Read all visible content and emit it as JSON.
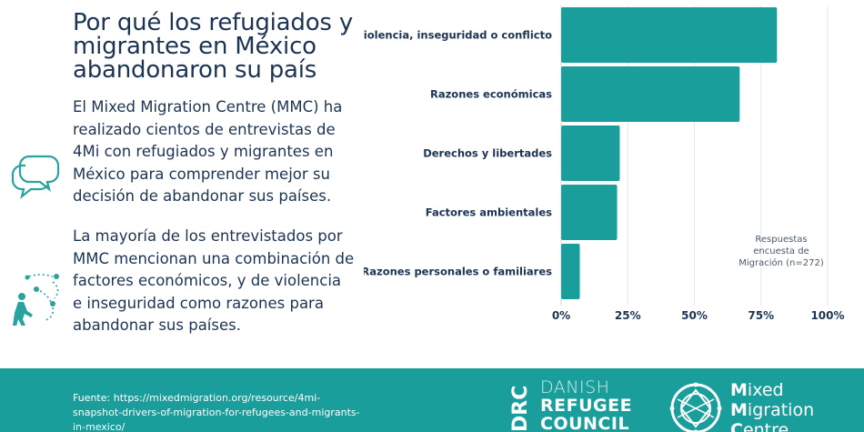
{
  "header": {
    "title": "Por qué los refugiados y migrantes en México abandonaron su país"
  },
  "intro": {
    "paragraph1": "El Mixed Migration Centre (MMC) ha realizado cientos de entrevistas de 4Mi con refugiados y migrantes en México para comprender mejor su decisión de abandonar sus países.",
    "paragraph2": "La mayoría de los entrevistados por MMC mencionan una combinación de factores económicos, y de violencia e inseguridad como razones para abandonar sus países."
  },
  "icons": {
    "chat": "chat-bubbles-icon",
    "migration": "migrant-walking-icon"
  },
  "chart_data": {
    "type": "bar",
    "orientation": "horizontal",
    "categories": [
      "Violencia, inseguridad o conflicto",
      "Razones económicas",
      "Derechos y libertades",
      "Factores ambientales",
      "Razones personales o familiares"
    ],
    "values": [
      81,
      67,
      22,
      21,
      7
    ],
    "unit": "%",
    "xlim": [
      0,
      100
    ],
    "xticks": [
      {
        "value": 0,
        "label": "0%"
      },
      {
        "value": 25,
        "label": "25%"
      },
      {
        "value": 50,
        "label": "50%"
      },
      {
        "value": 75,
        "label": "75%"
      },
      {
        "value": 100,
        "label": "100%"
      }
    ],
    "grid": true,
    "bar_color": "#1a9e9c",
    "note": [
      "Respuestas",
      "encuesta de",
      "Migración (n=272)"
    ]
  },
  "footer": {
    "source_text": "Fuente: https://mixedmigration.org/resource/4mi-snapshot-drivers-of-migration-for-refugees-and-migrants-in-mexico/",
    "drc": {
      "mark": "DRC",
      "line1": "DANISH",
      "line2": "REFUGEE",
      "line3": "COUNCIL"
    },
    "mmc": {
      "line1_initial": "M",
      "line1_rest": "ixed",
      "line2_initial": "M",
      "line2_rest": "igration",
      "line3_initial": "C",
      "line3_rest": "entre"
    }
  },
  "colors": {
    "navy": "#1c3454",
    "teal": "#1a9e9c",
    "icon_teal": "#2aa3a0"
  }
}
